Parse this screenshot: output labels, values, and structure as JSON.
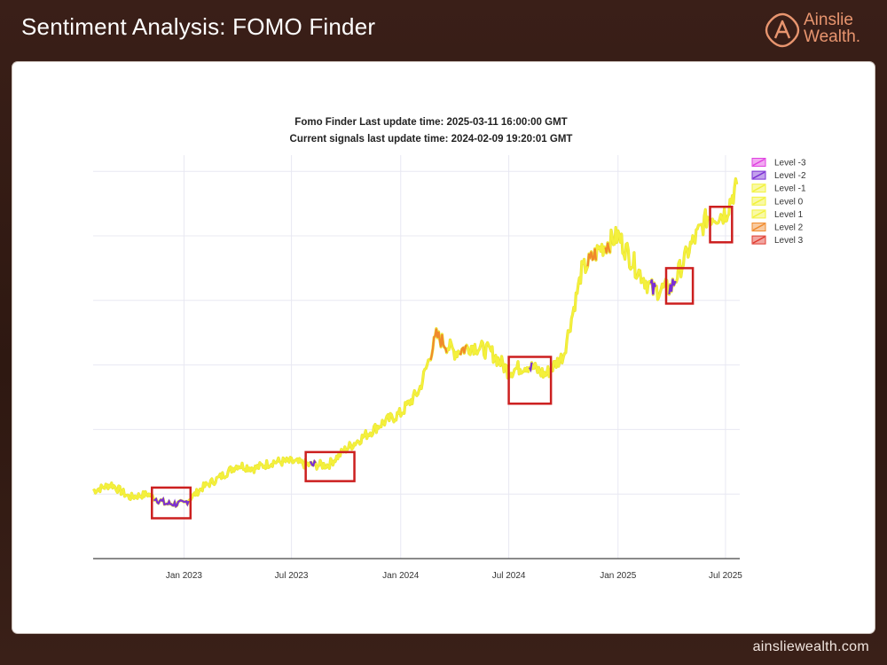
{
  "page": {
    "title": "Sentiment Analysis: FOMO Finder",
    "brand_line1": "Ainslie",
    "brand_line2": "Wealth.",
    "footer_url": "ainsliewealth.com"
  },
  "colors": {
    "brand_accent": "#e8956f",
    "highlight_box": "#cc1f1f",
    "grid": "#e8e8f2"
  },
  "chart_data": {
    "type": "line",
    "title_line1": "Fomo Finder Last update time: 2025-03-11 16:00:00 GMT",
    "title_line2": "Current signals last update time: 2024-02-09 19:20:01 GMT",
    "xlabel": "",
    "ylabel": "",
    "x_ticks": [
      "Jan 2023",
      "Jul 2023",
      "Jan 2024",
      "Jul 2024",
      "Jan 2025",
      "Jul 2025"
    ],
    "x_range": [
      "2022-08-01",
      "2025-07-25"
    ],
    "grid": true,
    "legend_position": "top-right",
    "legend": [
      {
        "name": "Level -3",
        "color": "#e040e0"
      },
      {
        "name": "Level -2",
        "color": "#7b2fd4"
      },
      {
        "name": "Level -1",
        "color": "#f2f23a"
      },
      {
        "name": "Level 0",
        "color": "#f2f23a"
      },
      {
        "name": "Level 1",
        "color": "#f2f23a"
      },
      {
        "name": "Level 2",
        "color": "#f08a2c"
      },
      {
        "name": "Level 3",
        "color": "#e03a2e"
      }
    ],
    "series": [
      {
        "x": [
          "2022-08-01",
          "2022-09-01",
          "2022-10-01",
          "2022-11-01",
          "2022-12-01",
          "2023-01-01",
          "2023-02-01",
          "2023-03-01",
          "2023-04-01",
          "2023-05-01",
          "2023-06-01",
          "2023-07-01",
          "2023-08-01",
          "2023-09-01",
          "2023-10-01",
          "2023-11-01",
          "2023-12-01",
          "2024-01-01",
          "2024-02-01",
          "2024-03-01",
          "2024-04-01",
          "2024-05-01",
          "2024-06-01",
          "2024-07-01",
          "2024-08-01",
          "2024-09-01",
          "2024-10-01",
          "2024-11-01",
          "2024-12-01",
          "2025-01-01",
          "2025-02-01",
          "2025-03-01",
          "2025-04-01",
          "2025-05-01",
          "2025-06-01",
          "2025-07-01",
          "2025-07-20"
        ],
        "y": [
          21,
          23,
          19,
          20,
          17,
          17,
          22,
          25,
          29,
          28,
          30,
          30,
          29,
          29,
          34,
          38,
          42,
          45,
          52,
          69,
          64,
          66,
          64,
          58,
          60,
          57,
          63,
          89,
          96,
          100,
          90,
          83,
          84,
          96,
          106,
          107,
          116
        ]
      }
    ],
    "highlight_boxes": [
      {
        "start": "2022-11-08",
        "end": "2023-01-12",
        "low": 12.5,
        "high": 22.0
      },
      {
        "start": "2023-07-25",
        "end": "2023-10-15",
        "low": 24.0,
        "high": 33.0
      },
      {
        "start": "2024-07-01",
        "end": "2024-09-10",
        "low": 48.0,
        "high": 62.5
      },
      {
        "start": "2025-03-23",
        "end": "2025-05-07",
        "low": 79.0,
        "high": 90.0
      },
      {
        "start": "2025-06-05",
        "end": "2025-07-12",
        "low": 98.0,
        "high": 109.0
      }
    ],
    "signal_segments": [
      {
        "start": "2022-11-10",
        "end": "2023-01-10",
        "level": "Level -2"
      },
      {
        "start": "2023-08-01",
        "end": "2023-08-12",
        "level": "Level -2"
      },
      {
        "start": "2024-02-20",
        "end": "2024-03-20",
        "level": "Level 2"
      },
      {
        "start": "2024-04-08",
        "end": "2024-04-22",
        "level": "Level 2"
      },
      {
        "start": "2024-08-04",
        "end": "2024-08-10",
        "level": "Level -2"
      },
      {
        "start": "2024-11-10",
        "end": "2024-11-25",
        "level": "Level 2"
      },
      {
        "start": "2024-12-10",
        "end": "2024-12-20",
        "level": "Level 2"
      },
      {
        "start": "2025-02-25",
        "end": "2025-03-05",
        "level": "Level -2"
      },
      {
        "start": "2025-03-28",
        "end": "2025-04-10",
        "level": "Level -2"
      }
    ]
  }
}
